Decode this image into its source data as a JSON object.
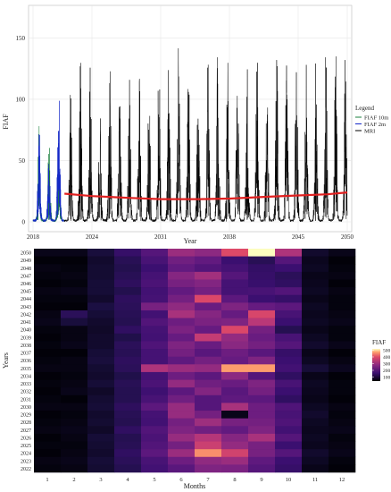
{
  "chart_data": [
    {
      "type": "line",
      "xlabel": "Year",
      "ylabel": "FIAF",
      "x_ticks": [
        "2018",
        "2024",
        "2031",
        "2038",
        "2045",
        "2050"
      ],
      "x_range": [
        2018,
        2050
      ],
      "y_ticks": [
        0,
        50,
        100,
        150
      ],
      "ylim": [
        0,
        170
      ],
      "grid": true,
      "legend_title": "Legend",
      "legend_position": "right",
      "series": [
        {
          "name": "FIAF 10m",
          "color": "#1a7f3c",
          "x_range": [
            2018,
            2021.2
          ],
          "annual_peaks": [
            78,
            66,
            60,
            70
          ]
        },
        {
          "name": "FIAF 2m",
          "color": "#1428c8",
          "x_range": [
            2018,
            2021.2
          ],
          "annual_peaks": [
            77,
            50,
            107,
            138
          ]
        },
        {
          "name": "MRI",
          "color": "#000000",
          "x_range": [
            2021.2,
            2050
          ],
          "annual_peaks": [
            110,
            132,
            125,
            93,
            128,
            108,
            115,
            125,
            118,
            135,
            128,
            142,
            130,
            120,
            132,
            168,
            130,
            138,
            125,
            142,
            130,
            140,
            132,
            145,
            128,
            135,
            137,
            140,
            145,
            140
          ]
        },
        {
          "name": "trend",
          "color": "#e02020",
          "x": [
            2021.2,
            2024,
            2028,
            2031,
            2035,
            2038,
            2042,
            2045,
            2048,
            2050
          ],
          "values": [
            23,
            21,
            19.5,
            18.5,
            18.5,
            19,
            20.5,
            21.5,
            22.5,
            24
          ]
        }
      ]
    },
    {
      "type": "heatmap",
      "xlabel": "Months",
      "ylabel": "Years",
      "x_categories": [
        "1",
        "2",
        "3",
        "4",
        "5",
        "6",
        "7",
        "8",
        "9",
        "10",
        "11",
        "12"
      ],
      "y_categories": [
        "2050",
        "2049",
        "2048",
        "2047",
        "2046",
        "2045",
        "2044",
        "2043",
        "2042",
        "2041",
        "2040",
        "2039",
        "2038",
        "2037",
        "2036",
        "2035",
        "2034",
        "2033",
        "2032",
        "2031",
        "2030",
        "2029",
        "2028",
        "2027",
        "2026",
        "2025",
        "2024",
        "2023",
        "2022"
      ],
      "legend_title": "FIAF",
      "legend_ticks": [
        100,
        200,
        300,
        400,
        500
      ],
      "value_range": [
        40,
        520
      ],
      "values": [
        [
          60,
          60,
          95,
          150,
          200,
          300,
          280,
          400,
          520,
          330,
          80,
          60
        ],
        [
          45,
          45,
          80,
          125,
          180,
          240,
          220,
          160,
          125,
          200,
          65,
          45
        ],
        [
          55,
          50,
          85,
          115,
          160,
          220,
          195,
          175,
          145,
          160,
          70,
          50
        ],
        [
          50,
          55,
          85,
          125,
          175,
          270,
          310,
          200,
          150,
          130,
          60,
          55
        ],
        [
          45,
          50,
          90,
          135,
          185,
          250,
          265,
          175,
          155,
          140,
          65,
          45
        ],
        [
          55,
          60,
          90,
          115,
          170,
          220,
          245,
          175,
          180,
          195,
          70,
          55
        ],
        [
          50,
          50,
          80,
          135,
          175,
          245,
          395,
          210,
          160,
          150,
          60,
          50
        ],
        [
          45,
          45,
          100,
          130,
          250,
          285,
          230,
          260,
          225,
          210,
          70,
          50
        ],
        [
          55,
          130,
          90,
          125,
          170,
          320,
          270,
          225,
          390,
          180,
          65,
          55
        ],
        [
          60,
          95,
          80,
          120,
          195,
          235,
          255,
          260,
          345,
          160,
          70,
          60
        ],
        [
          50,
          55,
          75,
          140,
          175,
          255,
          225,
          395,
          245,
          120,
          60,
          50
        ],
        [
          45,
          55,
          80,
          110,
          170,
          225,
          360,
          290,
          230,
          180,
          70,
          50
        ],
        [
          50,
          60,
          80,
          130,
          190,
          260,
          230,
          275,
          245,
          200,
          80,
          60
        ],
        [
          45,
          45,
          90,
          125,
          175,
          245,
          205,
          235,
          205,
          150,
          60,
          45
        ],
        [
          50,
          55,
          95,
          135,
          175,
          215,
          245,
          225,
          260,
          160,
          70,
          55
        ],
        [
          55,
          55,
          85,
          130,
          330,
          300,
          290,
          460,
          460,
          170,
          90,
          65
        ],
        [
          45,
          50,
          80,
          110,
          175,
          235,
          210,
          280,
          200,
          140,
          60,
          45
        ],
        [
          50,
          55,
          90,
          125,
          185,
          290,
          240,
          230,
          260,
          180,
          70,
          50
        ],
        [
          45,
          60,
          75,
          120,
          165,
          210,
          265,
          205,
          245,
          160,
          65,
          50
        ],
        [
          50,
          45,
          85,
          120,
          180,
          240,
          200,
          215,
          210,
          140,
          60,
          45
        ],
        [
          55,
          55,
          90,
          135,
          210,
          295,
          200,
          320,
          235,
          190,
          70,
          55
        ],
        [
          45,
          50,
          80,
          125,
          175,
          295,
          245,
          60,
          235,
          180,
          80,
          50
        ],
        [
          50,
          55,
          85,
          120,
          170,
          245,
          305,
          250,
          245,
          190,
          70,
          55
        ],
        [
          55,
          60,
          75,
          140,
          195,
          260,
          240,
          220,
          260,
          170,
          65,
          60
        ],
        [
          45,
          55,
          90,
          120,
          185,
          295,
          340,
          270,
          320,
          200,
          70,
          50
        ],
        [
          50,
          50,
          85,
          125,
          195,
          245,
          370,
          290,
          250,
          160,
          65,
          55
        ],
        [
          45,
          55,
          80,
          140,
          210,
          300,
          450,
          380,
          250,
          200,
          80,
          60
        ],
        [
          55,
          60,
          90,
          130,
          180,
          235,
          285,
          300,
          215,
          160,
          70,
          50
        ],
        [
          50,
          55,
          85,
          120,
          170,
          205,
          260,
          255,
          200,
          150,
          60,
          45
        ]
      ]
    }
  ]
}
